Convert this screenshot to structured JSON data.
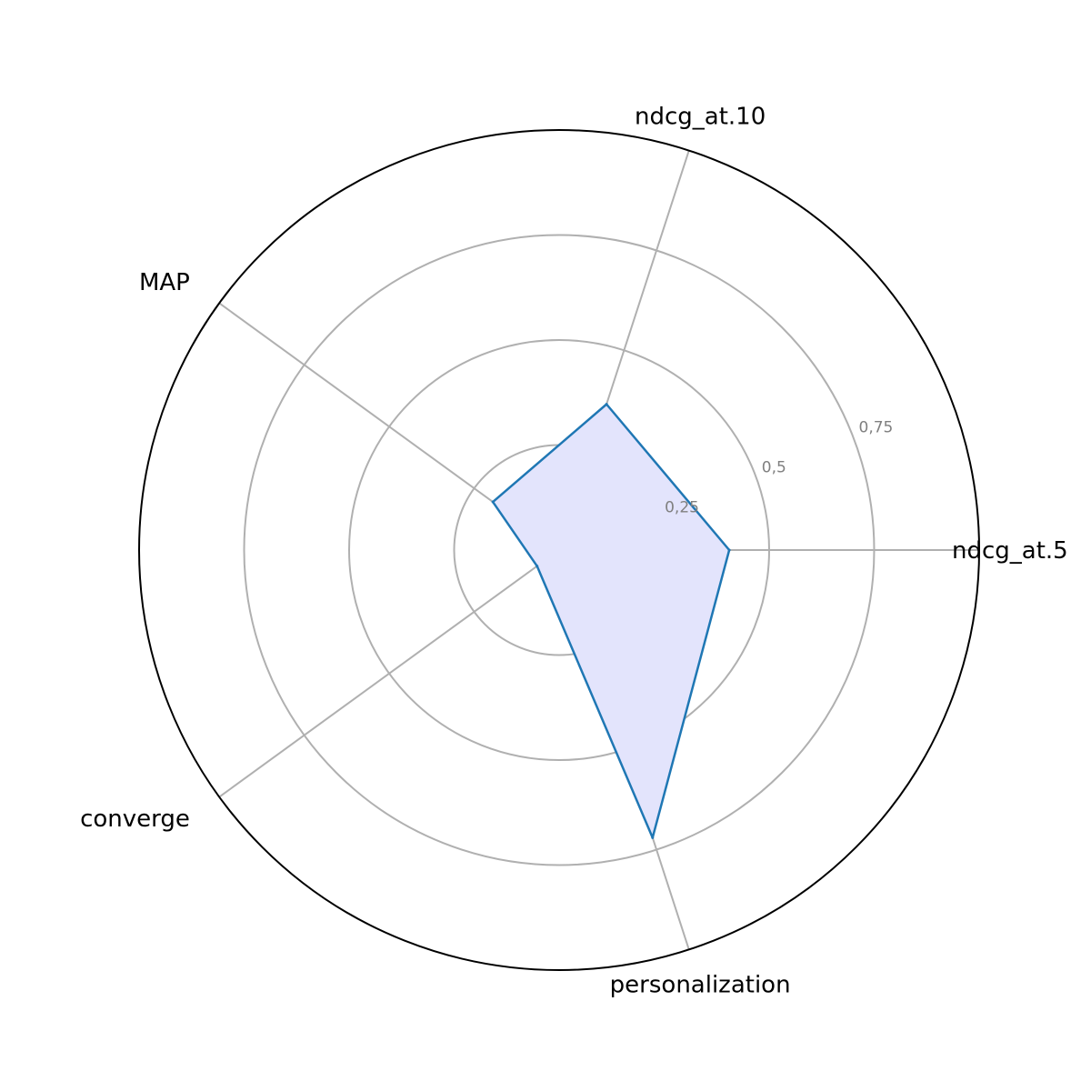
{
  "chart_data": {
    "type": "radar",
    "axes": [
      "ndcg_at.5",
      "ndcg_at.10",
      "MAP",
      "converge",
      "personalization"
    ],
    "series": [
      {
        "values": [
          0.405,
          0.365,
          0.195,
          0.065,
          0.72
        ]
      }
    ],
    "rlim": [
      0,
      1
    ],
    "rticks": [
      0.25,
      0.5,
      0.75
    ],
    "rtick_labels": [
      "0,25",
      "0,5",
      "0,75"
    ],
    "grid": true,
    "colors": {
      "line": "#1f77b4",
      "fill": "#e3e4fc",
      "grid": "#b0b0b0",
      "outer": "#000000",
      "tick_text": "#808080"
    }
  }
}
